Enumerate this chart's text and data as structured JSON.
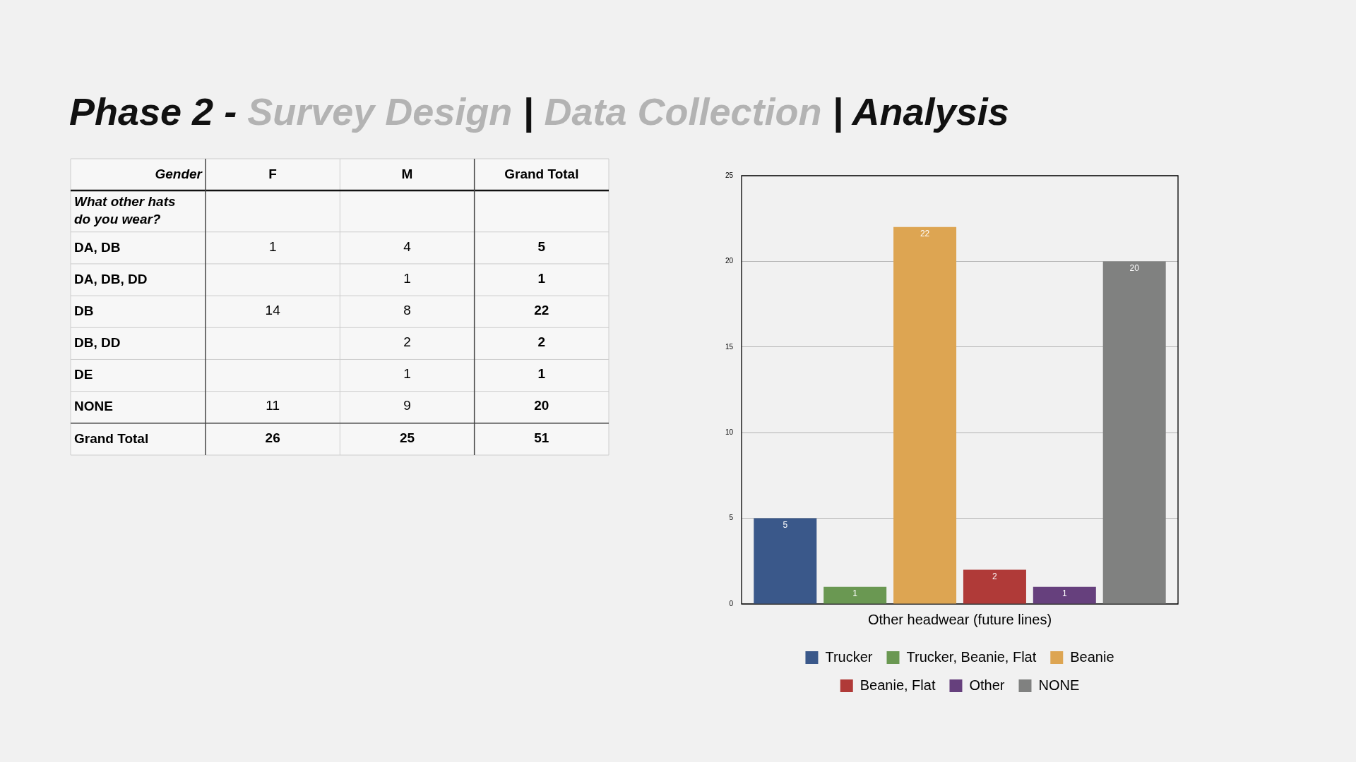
{
  "chart_data": [
    {
      "type": "heatmap",
      "title": "Phase 2 - Survey Design | Data Collection | Analysis",
      "xlabel": "Gender",
      "ylabel": "What other hats do you wear?",
      "categories": [
        "F",
        "M",
        "Grand Total"
      ],
      "y_categories": [
        "DA, DB",
        "DA, DB, DD",
        "DB",
        "DB, DD",
        "DE",
        "NONE",
        "Grand Total"
      ],
      "cells": [
        [
          1,
          4,
          5
        ],
        [
          null,
          1,
          1
        ],
        [
          14,
          8,
          22
        ],
        [
          null,
          2,
          2
        ],
        [
          null,
          1,
          1
        ],
        [
          11,
          9,
          20
        ],
        [
          26,
          25,
          51
        ]
      ],
      "color": "#f7f7f7",
      "data_labels": true
    },
    {
      "type": "bar",
      "categories": [
        "Other headwear (future lines)"
      ],
      "series": [
        {
          "name": "Trucker",
          "color": "#3a588a",
          "values": [
            5
          ]
        },
        {
          "name": "Trucker, Beanie, Flat",
          "color": "#6a9852",
          "values": [
            1
          ]
        },
        {
          "name": "Beanie",
          "color": "#dda552",
          "values": [
            22
          ]
        },
        {
          "name": "Beanie, Flat",
          "color": "#b03a38",
          "values": [
            2
          ]
        },
        {
          "name": "Other",
          "color": "#66407d",
          "values": [
            1
          ]
        },
        {
          "name": "NONE",
          "color": "#808180",
          "values": [
            20
          ]
        }
      ],
      "ylim": [
        0,
        25
      ],
      "yticks": [
        0,
        5,
        10,
        15,
        20,
        25
      ],
      "grid": "y",
      "legend": "bottom",
      "data_labels": true
    }
  ]
}
